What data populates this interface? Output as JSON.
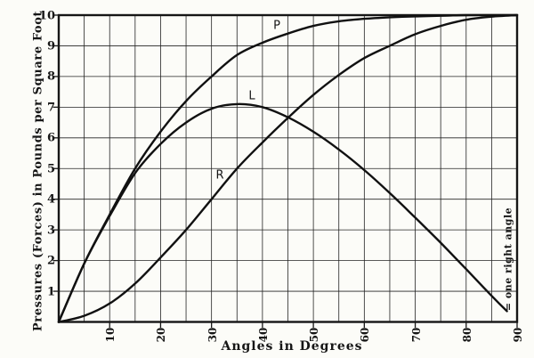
{
  "page": {
    "background": "#fcfcf8",
    "ink": "#161616",
    "grid_color": "#242424",
    "curve_color": "#111111"
  },
  "chart_data": {
    "type": "line",
    "title": "",
    "xlabel": "Angles in Degrees",
    "ylabel": "Pressures (Forces) in Pounds per Square Foot",
    "xlim": [
      0,
      90
    ],
    "ylim": [
      0,
      10
    ],
    "grid": true,
    "grid_x_step_degrees": 5,
    "grid_y_step": 1,
    "legend_position": "none",
    "xticks": [
      10,
      20,
      30,
      40,
      50,
      60,
      70,
      80,
      90
    ],
    "yticks": [
      1,
      2,
      3,
      4,
      5,
      6,
      7,
      8,
      9,
      10
    ],
    "series": [
      {
        "name": "P",
        "description": "normal pressure curve",
        "x": [
          0,
          5,
          10,
          15,
          20,
          25,
          30,
          35,
          40,
          45,
          50,
          55,
          60,
          65,
          70,
          75,
          80,
          85,
          90
        ],
        "values": [
          0,
          1.9,
          3.5,
          5.0,
          6.2,
          7.2,
          8.0,
          8.7,
          9.1,
          9.4,
          9.65,
          9.8,
          9.88,
          9.93,
          9.96,
          9.98,
          10,
          10,
          10
        ]
      },
      {
        "name": "L",
        "description": "curve peaking near 7 at ~36 degrees then falling",
        "x": [
          0,
          5,
          10,
          15,
          20,
          25,
          30,
          35,
          40,
          45,
          50,
          55,
          60,
          65,
          70,
          75,
          80,
          85,
          88
        ],
        "values": [
          0,
          1.9,
          3.45,
          4.85,
          5.8,
          6.5,
          6.95,
          7.1,
          7.0,
          6.67,
          6.2,
          5.62,
          4.95,
          4.2,
          3.4,
          2.58,
          1.72,
          0.85,
          0.35
        ]
      },
      {
        "name": "R",
        "description": "rising curve reaching 10 at 90 degrees",
        "x": [
          0,
          5,
          10,
          15,
          20,
          25,
          30,
          35,
          40,
          45,
          50,
          55,
          60,
          65,
          70,
          75,
          80,
          85,
          90
        ],
        "values": [
          0,
          0.2,
          0.6,
          1.25,
          2.1,
          3.0,
          4.0,
          5.0,
          5.85,
          6.65,
          7.4,
          8.05,
          8.6,
          9.0,
          9.38,
          9.65,
          9.85,
          9.95,
          10
        ]
      }
    ],
    "annotations": [
      {
        "text": "= one right angle",
        "near_x_degrees": 90,
        "rotated": true
      }
    ]
  }
}
